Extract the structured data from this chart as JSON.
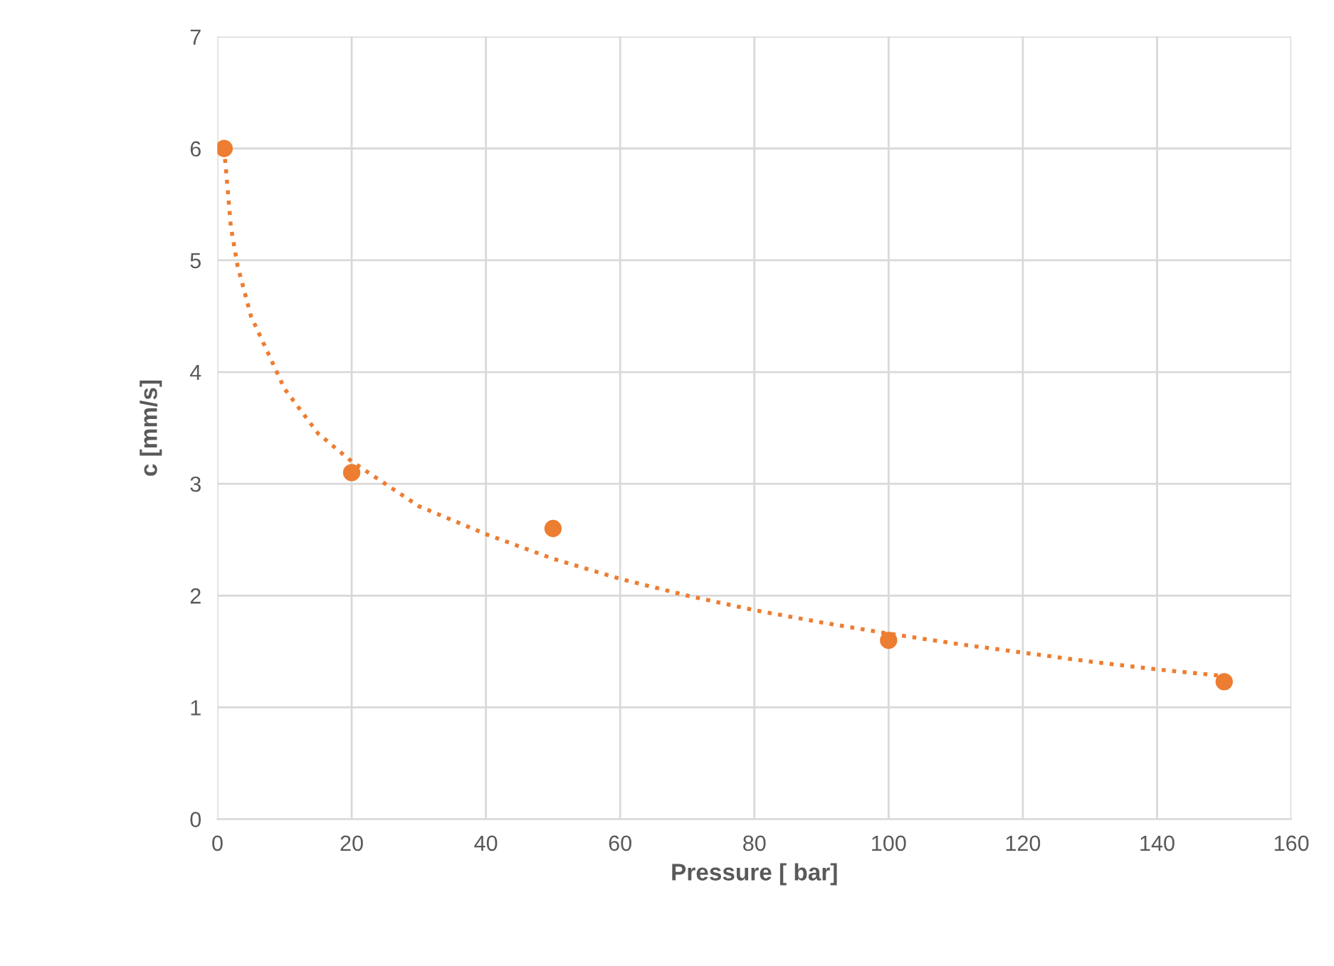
{
  "chart_data": {
    "type": "scatter",
    "xlabel": "Pressure [ bar]",
    "ylabel": "c [mm/s]",
    "xlim": [
      0,
      160
    ],
    "xticks": [
      0,
      20,
      40,
      60,
      80,
      100,
      120,
      140,
      160
    ],
    "ylim": [
      0,
      7
    ],
    "yticks": [
      0,
      1,
      2,
      3,
      4,
      5,
      6,
      7
    ],
    "grid": true,
    "series": [
      {
        "color": "#ed7d31",
        "marker": "circle",
        "x": [
          1,
          20,
          50,
          100,
          150
        ],
        "values": [
          6.0,
          3.1,
          2.6,
          1.6,
          1.23
        ]
      },
      {
        "type": "line",
        "color": "#ed7d31",
        "line_style": "dotted",
        "marker": "none",
        "x": [
          1,
          2,
          3,
          5,
          10,
          15,
          20,
          30,
          40,
          50,
          60,
          70,
          80,
          90,
          100,
          110,
          120,
          130,
          140,
          150
        ],
        "values": [
          6.0,
          5.3,
          4.95,
          4.5,
          3.85,
          3.45,
          3.2,
          2.8,
          2.55,
          2.33,
          2.15,
          2.0,
          1.87,
          1.76,
          1.66,
          1.57,
          1.49,
          1.41,
          1.34,
          1.28
        ]
      }
    ]
  }
}
